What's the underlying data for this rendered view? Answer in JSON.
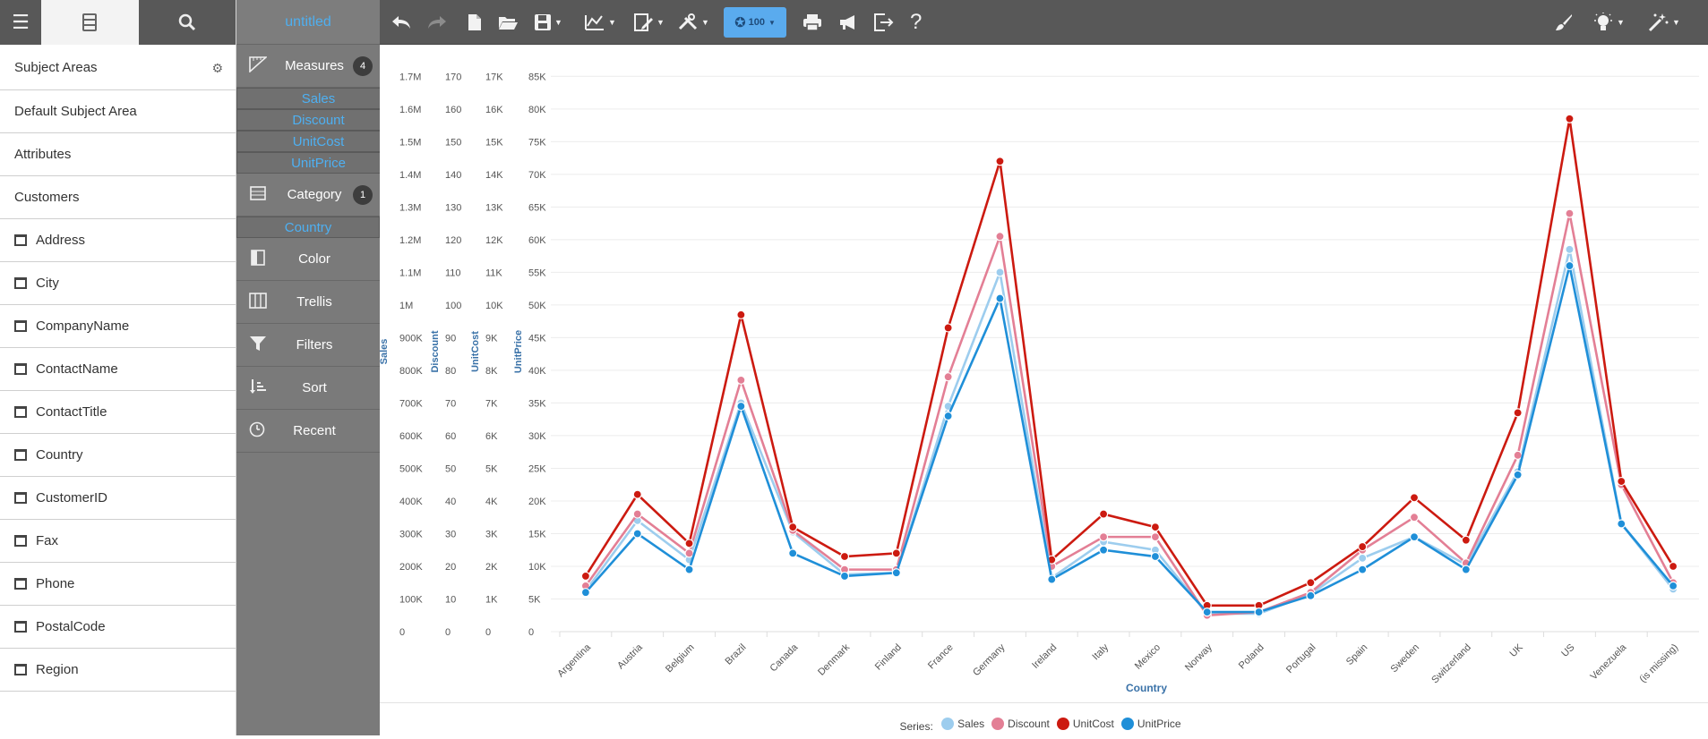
{
  "left_panel": {
    "items": [
      {
        "label": "Subject Areas",
        "type": "header"
      },
      {
        "label": "Default Subject Area",
        "type": "plain"
      },
      {
        "label": "Attributes",
        "type": "plain"
      },
      {
        "label": "Customers",
        "type": "plain"
      },
      {
        "label": "Address",
        "type": "attr"
      },
      {
        "label": "City",
        "type": "attr"
      },
      {
        "label": "CompanyName",
        "type": "attr"
      },
      {
        "label": "ContactName",
        "type": "attr"
      },
      {
        "label": "ContactTitle",
        "type": "attr"
      },
      {
        "label": "Country",
        "type": "attr"
      },
      {
        "label": "CustomerID",
        "type": "attr"
      },
      {
        "label": "Fax",
        "type": "attr"
      },
      {
        "label": "Phone",
        "type": "attr"
      },
      {
        "label": "PostalCode",
        "type": "attr"
      },
      {
        "label": "Region",
        "type": "attr"
      }
    ]
  },
  "mid_panel": {
    "title": "untitled",
    "measures": {
      "label": "Measures",
      "count": "4",
      "items": [
        "Sales",
        "Discount",
        "UnitCost",
        "UnitPrice"
      ]
    },
    "category": {
      "label": "Category",
      "count": "1",
      "items": [
        "Country"
      ]
    },
    "color": {
      "label": "Color"
    },
    "trellis": {
      "label": "Trellis"
    },
    "filters": {
      "label": "Filters"
    },
    "sort": {
      "label": "Sort"
    },
    "recent": {
      "label": "Recent"
    }
  },
  "toolbar": {
    "zoom_label": "100"
  },
  "legend": {
    "prefix": "Series:",
    "items": [
      {
        "name": "Sales",
        "color": "#9dcdee"
      },
      {
        "name": "Discount",
        "color": "#e37f95"
      },
      {
        "name": "UnitCost",
        "color": "#cc1a10"
      },
      {
        "name": "UnitPrice",
        "color": "#1f8fd8"
      }
    ]
  },
  "chart_data": {
    "type": "line",
    "xlabel": "Country",
    "categories": [
      "Argentina",
      "Austria",
      "Belgium",
      "Brazil",
      "Canada",
      "Denmark",
      "Finland",
      "France",
      "Germany",
      "Ireland",
      "Italy",
      "Mexico",
      "Norway",
      "Poland",
      "Portugal",
      "Spain",
      "Sweden",
      "Switzerland",
      "UK",
      "US",
      "Venezuela",
      "(is missing)"
    ],
    "axes": [
      {
        "label": "Sales",
        "ticks": [
          "0",
          "100K",
          "200K",
          "300K",
          "400K",
          "500K",
          "600K",
          "700K",
          "800K",
          "900K",
          "1M",
          "1.1M",
          "1.2M",
          "1.3M",
          "1.4M",
          "1.5M",
          "1.6M",
          "1.7M"
        ]
      },
      {
        "label": "Discount",
        "ticks": [
          "0",
          "10",
          "20",
          "30",
          "40",
          "50",
          "60",
          "70",
          "80",
          "90",
          "100",
          "110",
          "120",
          "130",
          "140",
          "150",
          "160",
          "170"
        ]
      },
      {
        "label": "UnitCost",
        "ticks": [
          "0",
          "1K",
          "2K",
          "3K",
          "4K",
          "5K",
          "6K",
          "7K",
          "8K",
          "9K",
          "10K",
          "11K",
          "12K",
          "13K",
          "14K",
          "15K",
          "16K",
          "17K"
        ]
      },
      {
        "label": "UnitPrice",
        "ticks": [
          "0",
          "5K",
          "10K",
          "15K",
          "20K",
          "25K",
          "30K",
          "35K",
          "40K",
          "45K",
          "50K",
          "55K",
          "60K",
          "65K",
          "70K",
          "75K",
          "80K",
          "85K"
        ]
      }
    ],
    "series": [
      {
        "name": "Sales",
        "color": "#9dcdee",
        "values": [
          125000,
          340000,
          220000,
          700000,
          305000,
          175000,
          180000,
          690000,
          1100000,
          165000,
          275000,
          250000,
          55000,
          55000,
          115000,
          225000,
          290000,
          205000,
          490000,
          1170000,
          330000,
          130000
        ]
      },
      {
        "name": "Discount",
        "color": "#e37f95",
        "values": [
          14,
          36,
          24,
          77,
          31,
          19,
          19,
          78,
          121,
          20,
          29,
          29,
          5,
          6,
          12,
          25,
          35,
          21,
          54,
          128,
          45,
          15
        ]
      },
      {
        "name": "UnitCost",
        "color": "#cc1a10",
        "values": [
          1700,
          4200,
          2700,
          9700,
          3200,
          2300,
          2400,
          9300,
          14400,
          2200,
          3600,
          3200,
          800,
          800,
          1500,
          2600,
          4100,
          2800,
          6700,
          15700,
          4600,
          2000
        ]
      },
      {
        "name": "UnitPrice",
        "color": "#1f8fd8",
        "values": [
          6000,
          15000,
          9500,
          34500,
          12000,
          8500,
          9000,
          33000,
          51000,
          8000,
          12500,
          11500,
          3000,
          3000,
          5500,
          9500,
          14500,
          9500,
          24000,
          56000,
          16500,
          7000
        ]
      }
    ]
  }
}
